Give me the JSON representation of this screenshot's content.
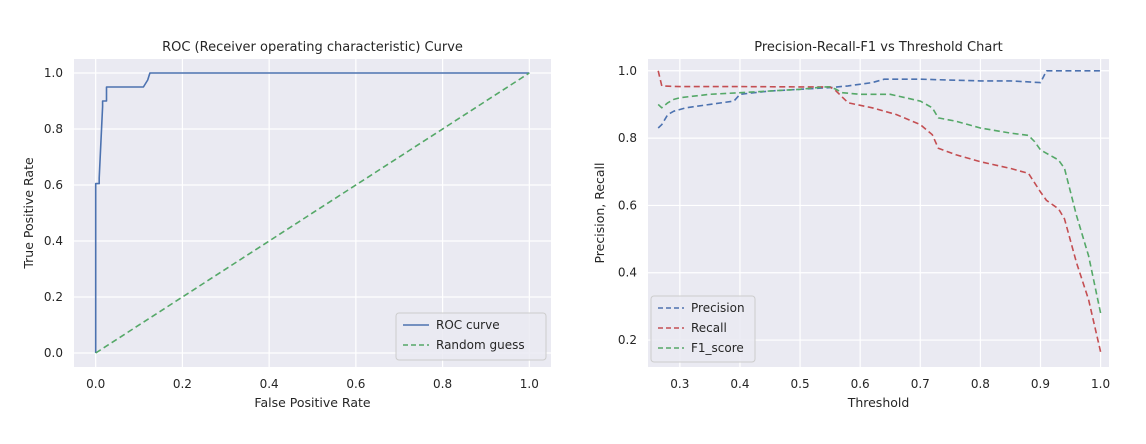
{
  "chart_data": [
    {
      "type": "line",
      "title": "ROC (Receiver operating characteristic) Curve",
      "xlabel": "False Positive Rate",
      "ylabel": "True Positive Rate",
      "xlim": [
        -0.05,
        1.05
      ],
      "ylim": [
        -0.05,
        1.05
      ],
      "xticks": [
        0.0,
        0.2,
        0.4,
        0.6,
        0.8,
        1.0
      ],
      "yticks": [
        0.0,
        0.2,
        0.4,
        0.6,
        0.8,
        1.0
      ],
      "xtick_labels": [
        "0.0",
        "0.2",
        "0.4",
        "0.6",
        "0.8",
        "1.0"
      ],
      "ytick_labels": [
        "0.0",
        "0.2",
        "0.4",
        "0.6",
        "0.8",
        "1.0"
      ],
      "grid": true,
      "legend_position": "bottom-right",
      "series": [
        {
          "name": "ROC curve",
          "style": "solid",
          "color": "#4c72b0",
          "x": [
            0.0,
            0.0,
            0.008,
            0.008,
            0.016,
            0.016,
            0.025,
            0.025,
            0.11,
            0.12,
            0.125,
            1.0
          ],
          "y": [
            0.0,
            0.605,
            0.605,
            0.625,
            0.88,
            0.9,
            0.9,
            0.95,
            0.95,
            0.975,
            1.0,
            1.0
          ]
        },
        {
          "name": "Random guess",
          "style": "dashed",
          "color": "#55a868",
          "x": [
            0.0,
            1.0
          ],
          "y": [
            0.0,
            1.0
          ]
        }
      ]
    },
    {
      "type": "line",
      "title": "Precision-Recall-F1 vs Threshold Chart",
      "xlabel": "Threshold",
      "ylabel": "Precision, Recall",
      "xlim": [
        0.247,
        1.014
      ],
      "ylim": [
        0.12,
        1.035
      ],
      "xticks": [
        0.3,
        0.4,
        0.5,
        0.6,
        0.7,
        0.8,
        0.9,
        1.0
      ],
      "yticks": [
        0.2,
        0.4,
        0.6,
        0.8,
        1.0
      ],
      "xtick_labels": [
        "0.3",
        "0.4",
        "0.5",
        "0.6",
        "0.7",
        "0.8",
        "0.9",
        "1.0"
      ],
      "ytick_labels": [
        "0.2",
        "0.4",
        "0.6",
        "0.8",
        "1.0"
      ],
      "grid": true,
      "legend_position": "bottom-left",
      "series": [
        {
          "name": "Precision",
          "style": "dashed",
          "color": "#4c72b0",
          "x": [
            0.264,
            0.27,
            0.28,
            0.29,
            0.31,
            0.35,
            0.39,
            0.4,
            0.45,
            0.5,
            0.55,
            0.58,
            0.62,
            0.64,
            0.7,
            0.8,
            0.85,
            0.9,
            0.91,
            0.95,
            1.0
          ],
          "y": [
            0.83,
            0.84,
            0.87,
            0.88,
            0.89,
            0.9,
            0.91,
            0.93,
            0.94,
            0.945,
            0.95,
            0.955,
            0.965,
            0.975,
            0.975,
            0.97,
            0.97,
            0.965,
            1.0,
            1.0,
            1.0
          ]
        },
        {
          "name": "Recall",
          "style": "dashed",
          "color": "#c44e52",
          "x": [
            0.264,
            0.27,
            0.3,
            0.4,
            0.5,
            0.55,
            0.56,
            0.58,
            0.62,
            0.66,
            0.7,
            0.72,
            0.73,
            0.76,
            0.8,
            0.85,
            0.88,
            0.9,
            0.91,
            0.93,
            0.94,
            0.96,
            0.98,
            1.0
          ],
          "y": [
            1.0,
            0.955,
            0.953,
            0.953,
            0.952,
            0.952,
            0.94,
            0.905,
            0.89,
            0.87,
            0.84,
            0.81,
            0.77,
            0.75,
            0.73,
            0.71,
            0.695,
            0.64,
            0.615,
            0.59,
            0.56,
            0.43,
            0.32,
            0.165
          ]
        },
        {
          "name": "F1_score",
          "style": "dashed",
          "color": "#55a868",
          "x": [
            0.264,
            0.27,
            0.28,
            0.29,
            0.3,
            0.35,
            0.4,
            0.45,
            0.5,
            0.54,
            0.55,
            0.56,
            0.57,
            0.6,
            0.65,
            0.7,
            0.72,
            0.73,
            0.76,
            0.8,
            0.85,
            0.88,
            0.89,
            0.9,
            0.91,
            0.93,
            0.94,
            0.96,
            0.98,
            1.0
          ],
          "y": [
            0.9,
            0.89,
            0.905,
            0.915,
            0.92,
            0.93,
            0.935,
            0.94,
            0.945,
            0.952,
            0.952,
            0.945,
            0.935,
            0.93,
            0.93,
            0.91,
            0.89,
            0.86,
            0.85,
            0.83,
            0.815,
            0.808,
            0.79,
            0.765,
            0.755,
            0.735,
            0.71,
            0.57,
            0.45,
            0.28
          ]
        }
      ]
    }
  ]
}
